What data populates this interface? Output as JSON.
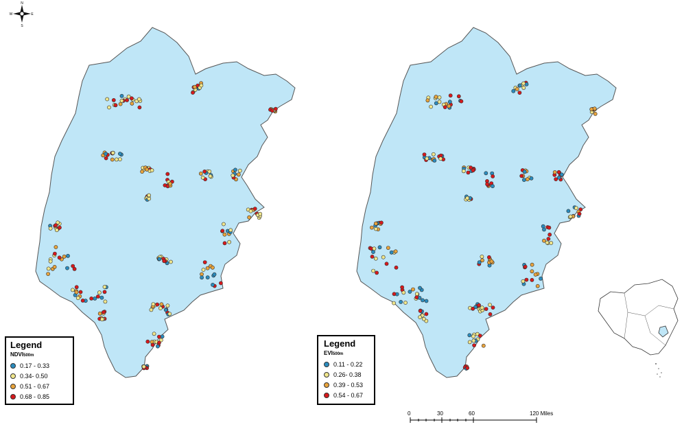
{
  "maps": [
    {
      "id": "ndvi",
      "legend": {
        "title": "Legend",
        "variable": "NDVI",
        "variable_sub": "500m",
        "classes": [
          {
            "label": "0.17 - 0.33",
            "color": "#2b8cbe"
          },
          {
            "label": "0.34- 0.50",
            "color": "#f0e68c"
          },
          {
            "label": "0.51 - 0.67",
            "color": "#e8a33c"
          },
          {
            "label": "0.68 - 0.85",
            "color": "#d7191c"
          }
        ]
      }
    },
    {
      "id": "evi",
      "legend": {
        "title": "Legend",
        "variable": "EVI",
        "variable_sub": "500m",
        "classes": [
          {
            "label": "0.11 - 0.22",
            "color": "#2b8cbe"
          },
          {
            "label": "0.26- 0.38",
            "color": "#f0e68c"
          },
          {
            "label": "0.39 - 0.53",
            "color": "#e8a33c"
          },
          {
            "label": "0.54 - 0.67",
            "color": "#d7191c"
          }
        ]
      }
    }
  ],
  "scale_bar": {
    "ticks": [
      "0",
      "30",
      "60",
      "120 Miles"
    ]
  },
  "compass": {
    "letters": [
      "N",
      "E",
      "S",
      "W"
    ]
  },
  "colors": {
    "land": "#bfe6f7",
    "outline": "#555555"
  },
  "icons": [
    "compass-rose-icon",
    "china-inset-map"
  ]
}
